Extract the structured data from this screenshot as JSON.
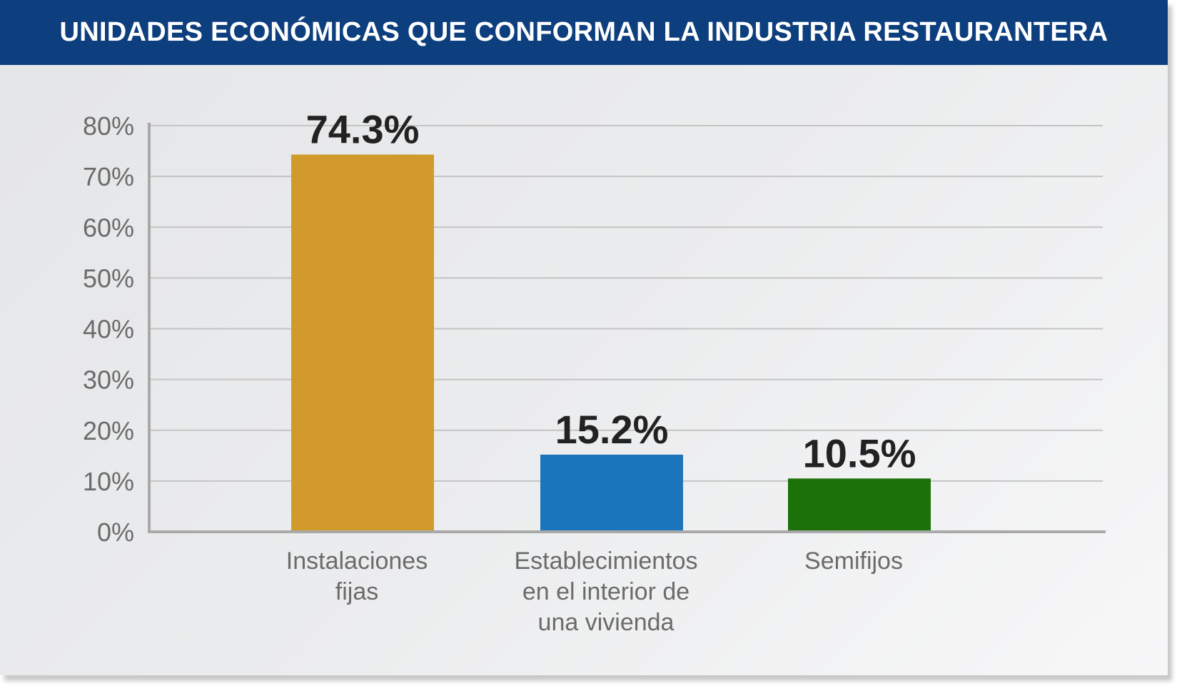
{
  "title": "UNIDADES ECONÓMICAS QUE CONFORMAN LA INDUSTRIA RESTAURANTERA",
  "chart_data": {
    "type": "bar",
    "title": "UNIDADES ECONÓMICAS QUE CONFORMAN LA INDUSTRIA RESTAURANTERA",
    "xlabel": "",
    "ylabel": "",
    "ylim": [
      0,
      80
    ],
    "yticks": [
      "0%",
      "10%",
      "20%",
      "30%",
      "40%",
      "50%",
      "60%",
      "70%",
      "80%"
    ],
    "grid": true,
    "categories": [
      [
        "Instalaciones",
        "fijas"
      ],
      [
        "Establecimientos",
        "en el interior de",
        "una vivienda"
      ],
      [
        "Semifijos"
      ]
    ],
    "values": [
      74.3,
      15.2,
      10.5
    ],
    "data_labels": [
      "74.3%",
      "15.2%",
      "10.5%"
    ],
    "colors": [
      "#d29a2a",
      "#1b75bd",
      "#1c7109"
    ]
  }
}
